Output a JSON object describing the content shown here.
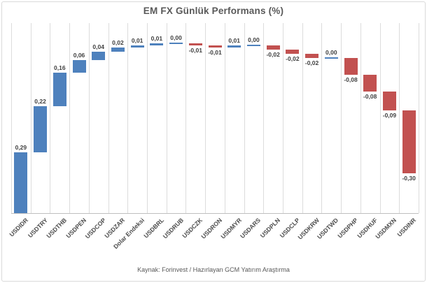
{
  "window": {
    "background": "#ffffff",
    "border_color": "#d9d9d9"
  },
  "chart_data": {
    "type": "bar",
    "variant": "waterfall",
    "title": "EM FX Günlük Performans (%)",
    "categories": [
      "USDIDR",
      "USDTRY",
      "USDTHB",
      "USDPEN",
      "USDCOP",
      "USDZAR",
      "Dolar Endeksi",
      "USDBRL",
      "USDRUB",
      "USDCZK",
      "USDRON",
      "USDMYR",
      "USDARS",
      "USDPLN",
      "USDCLP",
      "USDKRW",
      "USDTWD",
      "USDPHP",
      "USDHUF",
      "USDMXN",
      "USDINR"
    ],
    "values": [
      0.29,
      0.22,
      0.16,
      0.06,
      0.04,
      0.02,
      0.01,
      0.01,
      0.0,
      -0.01,
      -0.01,
      0.01,
      0.0,
      -0.02,
      -0.02,
      -0.02,
      0.0,
      -0.08,
      -0.08,
      -0.09,
      -0.3
    ],
    "value_labels": [
      "0,29",
      "0,22",
      "0,16",
      "0,06",
      "0,04",
      "0,02",
      "0,01",
      "0,01",
      "0,00",
      "-0,01",
      "-0,01",
      "0,01",
      "0,00",
      "-0,02",
      "-0,02",
      "-0,02",
      "0,00",
      "-0,08",
      "-0,08",
      "-0,09",
      "-0,30"
    ],
    "cumulative_end": 0.19,
    "xlabel": "",
    "ylabel": "",
    "ylim": [
      0,
      0.9
    ],
    "grid": "vertical-only",
    "legend": "none",
    "positive_color": "#4e81bd",
    "negative_color": "#c25150",
    "gridline_color": "#dcdcdc",
    "axis_color": "#bfbfbf",
    "label_color": "#404040",
    "title_color": "#595959"
  },
  "footer": {
    "text": "Kaynak: Forinvest / Hazırlayan GCM Yatırım Araştırma"
  }
}
